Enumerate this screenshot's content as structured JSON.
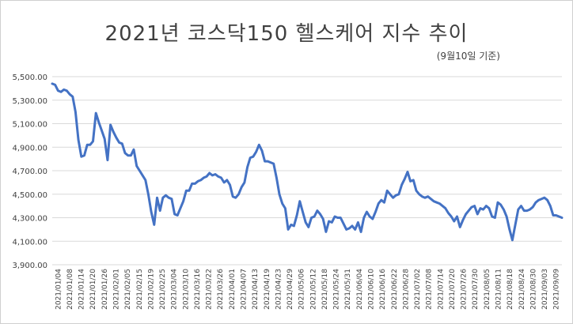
{
  "chart_data": {
    "type": "line",
    "title": "2021년 코스닥150 헬스케어 지수 추이",
    "subtitle": "(9월10일 기준)",
    "xlabel": "",
    "ylabel": "",
    "ylim": [
      3900,
      5500
    ],
    "yticks": [
      "3,900.00",
      "4,100.00",
      "4,300.00",
      "4,500.00",
      "4,700.00",
      "4,900.00",
      "5,100.00",
      "5,300.00",
      "5,500.00"
    ],
    "ytick_values": [
      3900,
      4100,
      4300,
      4500,
      4700,
      4900,
      5100,
      5300,
      5500
    ],
    "xtick_labels": [
      "2021/01/04",
      "2021/01/08",
      "2021/01/14",
      "2021/01/20",
      "2021/01/26",
      "2021/02/01",
      "2021/02/05",
      "2021/02/15",
      "2021/02/19",
      "2021/02/25",
      "2021/03/04",
      "2021/03/10",
      "2021/03/16",
      "2021/03/22",
      "2021/03/26",
      "2021/04/01",
      "2021/04/07",
      "2021/04/13",
      "2021/04/19",
      "2021/04/23",
      "2021/04/29",
      "2021/05/06",
      "2021/05/12",
      "2021/05/18",
      "2021/05/24",
      "2021/05/31",
      "2021/06/04",
      "2021/06/10",
      "2021/06/16",
      "2021/06/22",
      "2021/06/28",
      "2021/07/02",
      "2021/07/08",
      "2021/07/14",
      "2021/07/20",
      "2021/07/26",
      "2021/07/30",
      "2021/08/05",
      "2021/08/11",
      "2021/08/18",
      "2021/08/24",
      "2021/08/30",
      "2021/09/03",
      "2021/09/09"
    ],
    "grid": true,
    "line_color": "#4472c4",
    "series": [
      {
        "values": [
          5440,
          5430,
          5380,
          5370,
          5390,
          5380,
          5350,
          5330,
          5200,
          4960,
          4820,
          4830,
          4920,
          4920,
          4950,
          5190,
          5110,
          5040,
          4970,
          4790,
          5090,
          5030,
          4980,
          4940,
          4930,
          4850,
          4830,
          4830,
          4880,
          4740,
          4700,
          4660,
          4620,
          4500,
          4350,
          4240,
          4470,
          4360,
          4470,
          4490,
          4470,
          4460,
          4330,
          4320,
          4380,
          4440,
          4530,
          4530,
          4590,
          4590,
          4610,
          4620,
          4640,
          4650,
          4680,
          4660,
          4670,
          4650,
          4640,
          4600,
          4620,
          4580,
          4480,
          4470,
          4500,
          4560,
          4600,
          4730,
          4810,
          4820,
          4860,
          4920,
          4870,
          4780,
          4780,
          4770,
          4760,
          4640,
          4500,
          4420,
          4380,
          4200,
          4240,
          4230,
          4320,
          4440,
          4350,
          4260,
          4220,
          4300,
          4310,
          4360,
          4330,
          4290,
          4180,
          4270,
          4260,
          4310,
          4300,
          4300,
          4250,
          4200,
          4210,
          4230,
          4200,
          4260,
          4180,
          4300,
          4350,
          4310,
          4290,
          4350,
          4420,
          4450,
          4430,
          4530,
          4500,
          4470,
          4490,
          4500,
          4580,
          4630,
          4690,
          4610,
          4620,
          4530,
          4500,
          4480,
          4470,
          4480,
          4460,
          4440,
          4430,
          4420,
          4400,
          4380,
          4340,
          4310,
          4270,
          4310,
          4220,
          4280,
          4330,
          4360,
          4390,
          4400,
          4330,
          4380,
          4370,
          4400,
          4380,
          4310,
          4300,
          4430,
          4410,
          4370,
          4310,
          4200,
          4110,
          4240,
          4370,
          4400,
          4360,
          4360,
          4370,
          4390,
          4430,
          4450,
          4460,
          4470,
          4450,
          4400,
          4320,
          4320,
          4310,
          4300
        ]
      }
    ]
  }
}
